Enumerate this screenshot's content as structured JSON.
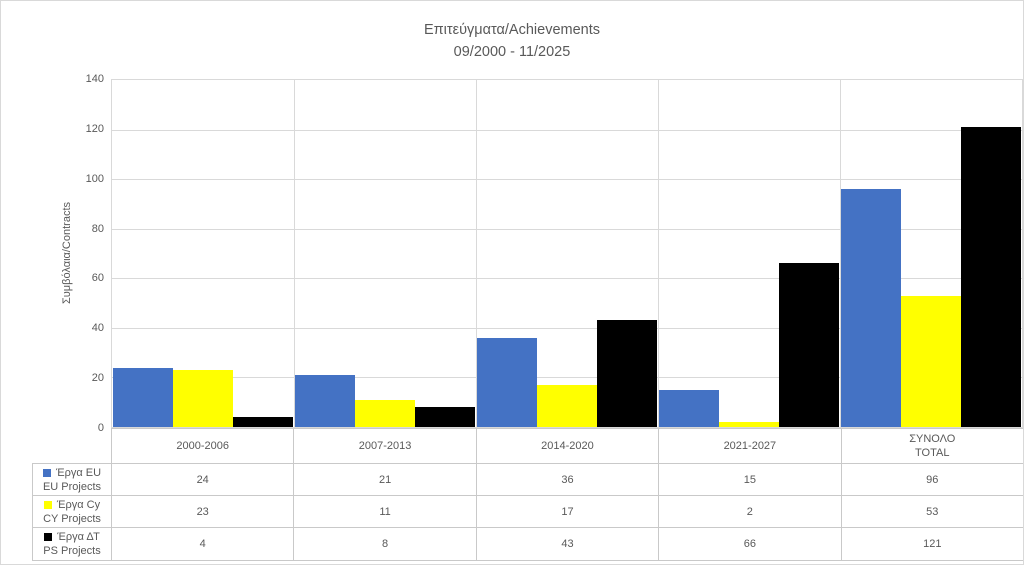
{
  "chart": {
    "title_line1": "Επιτεύγματα/Achievements",
    "title_line2": "09/2000 - 11/2025",
    "y_axis_title": "Συμβόλαια/Contracts"
  },
  "chart_data": {
    "type": "bar",
    "title": "Επιτεύγματα/Achievements 09/2000 - 11/2025",
    "xlabel": "",
    "ylabel": "Συμβόλαια/Contracts",
    "ylim": [
      0,
      140
    ],
    "ytick_step": 20,
    "grid": true,
    "legend_position": "data-table-left",
    "categories": [
      "2000-2006",
      "2007-2013",
      "2014-2020",
      "2021-2027",
      "ΣΥΝΟΛΟ TOTAL"
    ],
    "category_label_lines": [
      [
        "2000-2006"
      ],
      [
        "2007-2013"
      ],
      [
        "2014-2020"
      ],
      [
        "2021-2027"
      ],
      [
        "ΣΥΝΟΛΟ",
        "TOTAL"
      ]
    ],
    "series": [
      {
        "name": "Έργα EU / EU Projects",
        "name_lines": [
          "Έργα EU",
          "EU Projects"
        ],
        "color": "#4472c4",
        "values": [
          24,
          21,
          36,
          15,
          96
        ]
      },
      {
        "name": "Έργα Cy / CY Projects",
        "name_lines": [
          "Έργα Cy",
          "CY Projects"
        ],
        "color": "#ffff00",
        "values": [
          23,
          11,
          17,
          2,
          53
        ]
      },
      {
        "name": "Έργα ΔΤ / PS Projects",
        "name_lines": [
          "Έργα ΔΤ",
          "PS Projects"
        ],
        "color": "#000000",
        "values": [
          4,
          8,
          43,
          66,
          121
        ]
      }
    ]
  }
}
